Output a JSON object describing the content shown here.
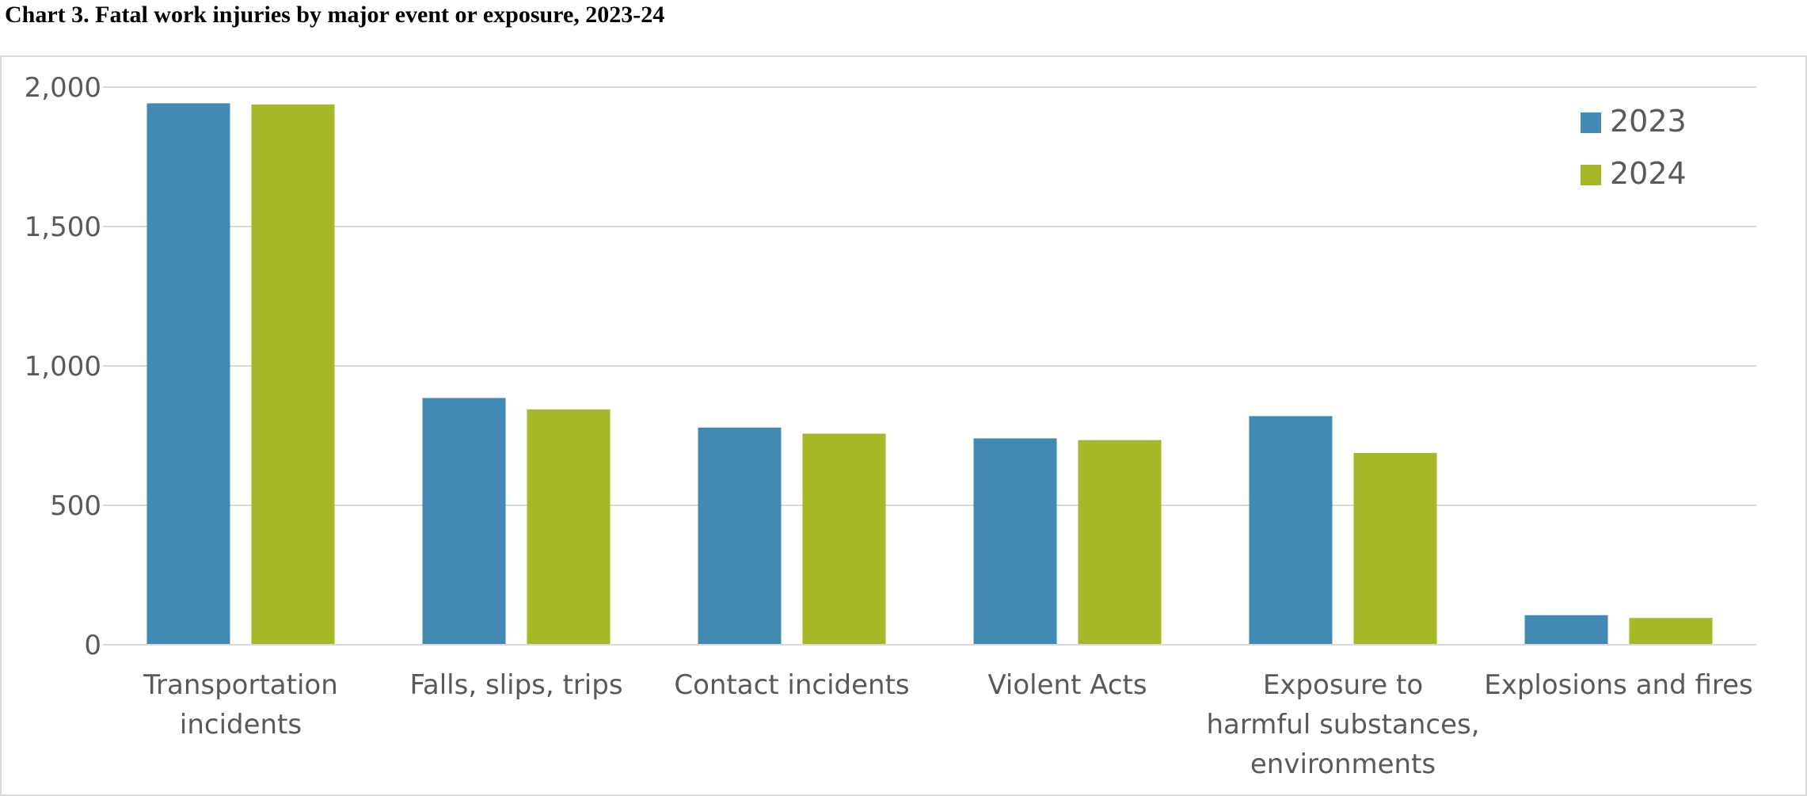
{
  "chart_data": {
    "type": "bar",
    "title": "Chart 3. Fatal work injuries by major event or exposure, 2023-24",
    "categories": [
      [
        "Transportation",
        "incidents"
      ],
      [
        "Falls, slips, trips"
      ],
      [
        "Contact incidents"
      ],
      [
        "Violent Acts"
      ],
      [
        "Exposure to",
        "harmful substances,",
        "environments"
      ],
      [
        "Explosions and fires"
      ]
    ],
    "series": [
      {
        "name": "2023",
        "color": "#418ab3",
        "values": [
          1942,
          885,
          779,
          740,
          820,
          106
        ]
      },
      {
        "name": "2024",
        "color": "#a6b727",
        "values": [
          1938,
          844,
          757,
          734,
          688,
          96
        ]
      }
    ],
    "ylim": [
      0,
      2000
    ],
    "yticks": [
      0,
      500,
      1000,
      1500,
      2000
    ],
    "ytick_labels": [
      "0",
      "500",
      "1,000",
      "1,500",
      "2,000"
    ],
    "grid": true,
    "legend": "top-right",
    "xlabel": "",
    "ylabel": ""
  }
}
